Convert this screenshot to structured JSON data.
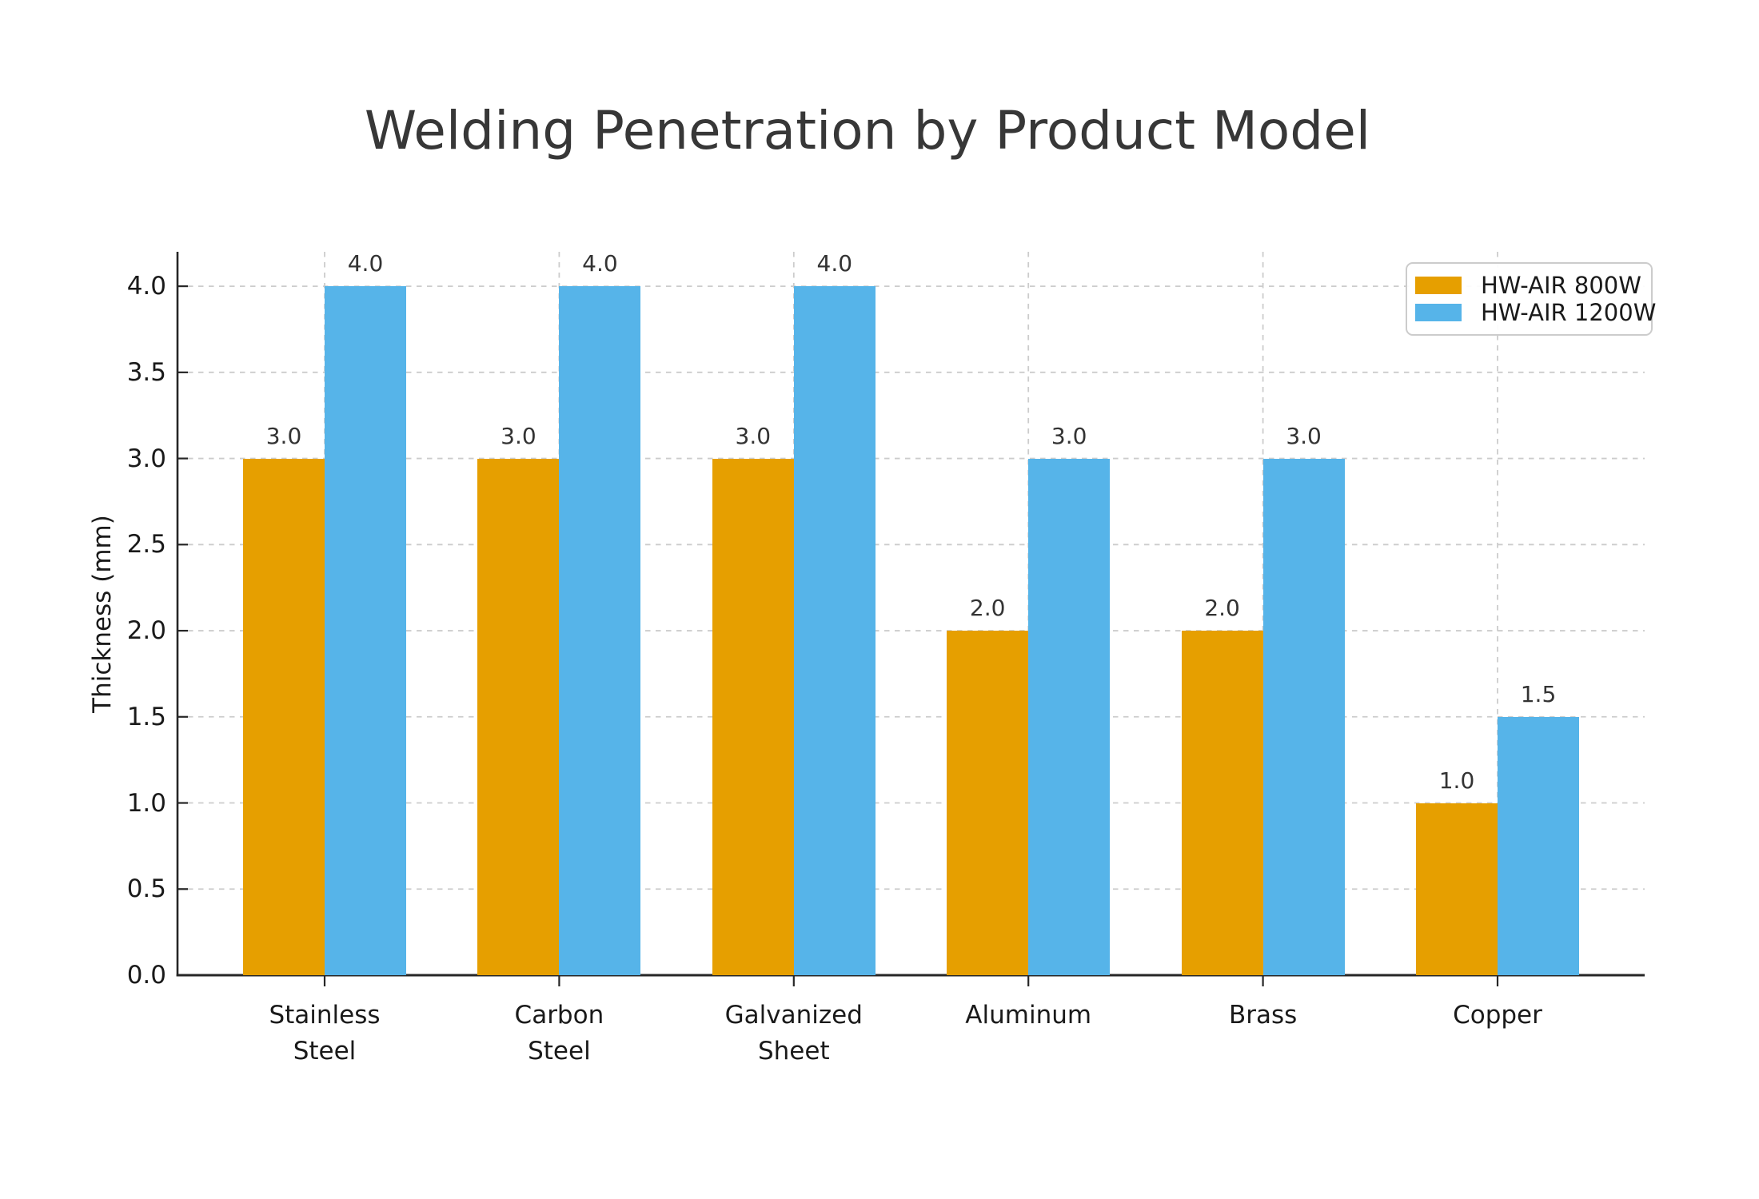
{
  "figure": {
    "background": "#ffffff"
  },
  "chart_data": {
    "type": "bar",
    "title": "Welding Penetration by Product Model",
    "xlabel": "",
    "ylabel": "Thickness (mm)",
    "categories": [
      "Stainless Steel",
      "Carbon Steel",
      "Galvanized Sheet",
      "Aluminum",
      "Brass",
      "Copper"
    ],
    "category_label_lines": [
      [
        "Stainless",
        "Steel"
      ],
      [
        "Carbon",
        "Steel"
      ],
      [
        "Galvanized",
        "Sheet"
      ],
      [
        "Aluminum"
      ],
      [
        "Brass"
      ],
      [
        "Copper"
      ]
    ],
    "series": [
      {
        "name": "HW-AIR 800W",
        "color": "#E69F00",
        "values": [
          3.0,
          3.0,
          3.0,
          2.0,
          2.0,
          1.0
        ]
      },
      {
        "name": "HW-AIR 1200W",
        "color": "#56B4E9",
        "values": [
          4.0,
          4.0,
          4.0,
          3.0,
          3.0,
          1.5
        ]
      }
    ],
    "bar_value_labels_shown": true,
    "yticks": [
      0.0,
      0.5,
      1.0,
      1.5,
      2.0,
      2.5,
      3.0,
      3.5,
      4.0
    ],
    "ylim": [
      0,
      4.2
    ],
    "grid": "both-axes-dashed",
    "legend_position": "upper right",
    "colors": {
      "grid": "#cccccc",
      "axis": "#262626",
      "title_text": "#373737",
      "tick_text": "#1a1a1a",
      "value_text": "#333333"
    }
  }
}
